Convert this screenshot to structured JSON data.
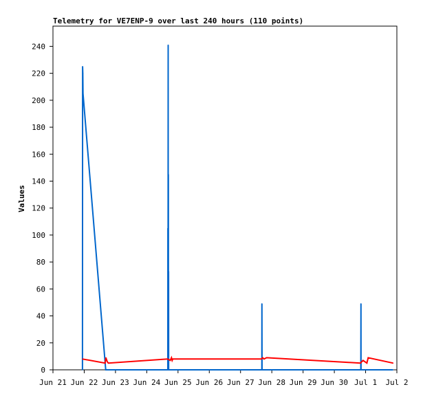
{
  "chart_data": {
    "type": "line",
    "title": "Telemetry for VE7ENP-9 over last 240 hours (110 points)",
    "xlabel": "",
    "ylabel": "Values",
    "x_ticks": [
      "Jun 21",
      "Jun 22",
      "Jun 23",
      "Jun 24",
      "Jun 25",
      "Jun 26",
      "Jun 27",
      "Jun 28",
      "Jun 29",
      "Jun 30",
      "Jul 1",
      "Jul 2"
    ],
    "y_ticks": [
      "0",
      "20",
      "40",
      "60",
      "80",
      "100",
      "120",
      "140",
      "160",
      "180",
      "200",
      "220",
      "240"
    ],
    "xlim": [
      "2022-06-21T00:00",
      "2022-07-02T00:00"
    ],
    "ylim": [
      0,
      255
    ],
    "grid": false,
    "series": [
      {
        "color": "#0066cc",
        "points": [
          [
            "2022-06-21T22:40",
            0
          ],
          [
            "2022-06-21T22:45",
            225
          ],
          [
            "2022-06-21T22:55",
            220
          ],
          [
            "2022-06-21T23:05",
            205
          ],
          [
            "2022-06-22T16:30",
            0
          ],
          [
            "2022-06-22T16:35",
            0
          ],
          [
            "2022-06-24T16:10",
            0
          ],
          [
            "2022-06-24T16:15",
            105
          ],
          [
            "2022-06-24T16:20",
            0
          ],
          [
            "2022-06-24T16:25",
            241
          ],
          [
            "2022-06-24T16:30",
            0
          ],
          [
            "2022-06-24T16:35",
            145
          ],
          [
            "2022-06-24T16:40",
            0
          ],
          [
            "2022-06-24T16:45",
            73
          ],
          [
            "2022-06-24T16:50",
            0
          ],
          [
            "2022-06-27T16:20",
            0
          ],
          [
            "2022-06-27T16:25",
            49
          ],
          [
            "2022-06-27T16:30",
            0
          ],
          [
            "2022-06-30T20:20",
            0
          ],
          [
            "2022-06-30T20:25",
            49
          ],
          [
            "2022-06-30T20:30",
            0
          ],
          [
            "2022-07-01T21:00",
            0
          ]
        ]
      },
      {
        "color": "#ff0000",
        "points": [
          [
            "2022-06-21T22:45",
            8
          ],
          [
            "2022-06-22T16:00",
            5
          ],
          [
            "2022-06-22T16:40",
            9
          ],
          [
            "2022-06-22T17:40",
            6
          ],
          [
            "2022-06-22T18:30",
            5
          ],
          [
            "2022-06-24T16:00",
            8
          ],
          [
            "2022-06-24T18:00",
            7
          ],
          [
            "2022-06-24T19:00",
            9
          ],
          [
            "2022-06-24T19:30",
            7
          ],
          [
            "2022-06-24T20:00",
            8
          ],
          [
            "2022-06-27T16:00",
            8
          ],
          [
            "2022-06-27T17:00",
            9
          ],
          [
            "2022-06-27T18:00",
            8
          ],
          [
            "2022-06-27T20:00",
            9
          ],
          [
            "2022-06-30T20:00",
            5
          ],
          [
            "2022-06-30T22:00",
            7
          ],
          [
            "2022-07-01T01:00",
            5
          ],
          [
            "2022-07-01T02:00",
            9
          ],
          [
            "2022-07-01T21:00",
            5
          ]
        ]
      }
    ]
  }
}
